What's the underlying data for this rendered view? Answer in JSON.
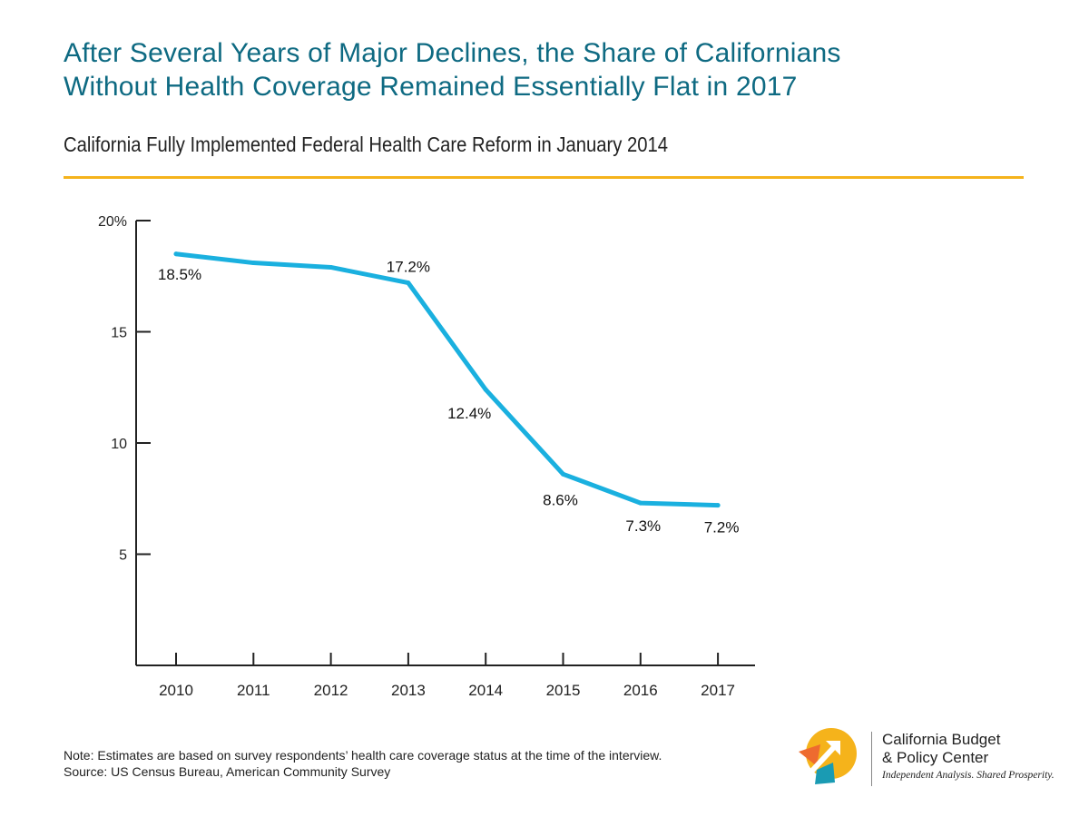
{
  "header": {
    "title_line1": "After Several Years of Major Declines, the Share of Californians",
    "title_line2": "Without Health Coverage Remained Essentially Flat in 2017",
    "subtitle": "California Fully Implemented Federal Health Care Reform in January 2014"
  },
  "colors": {
    "title": "#0e6a82",
    "accent_rule": "#f5b31b",
    "line": "#1ab0df",
    "axis": "#222222"
  },
  "chart_data": {
    "type": "line",
    "title": "",
    "xlabel": "",
    "ylabel": "",
    "x": [
      "2010",
      "2011",
      "2012",
      "2013",
      "2014",
      "2015",
      "2016",
      "2017"
    ],
    "series": [
      {
        "values": [
          18.5,
          18.1,
          17.9,
          17.2,
          12.4,
          8.6,
          7.3,
          7.2
        ]
      }
    ],
    "data_labels": [
      {
        "index": 0,
        "text": "18.5%"
      },
      {
        "index": 3,
        "text": "17.2%"
      },
      {
        "index": 4,
        "text": "12.4%"
      },
      {
        "index": 5,
        "text": "8.6%"
      },
      {
        "index": 6,
        "text": "7.3%"
      },
      {
        "index": 7,
        "text": "7.2%"
      }
    ],
    "y_ticks": [
      {
        "value": 20,
        "label": "20%"
      },
      {
        "value": 15,
        "label": "15"
      },
      {
        "value": 10,
        "label": "10"
      },
      {
        "value": 5,
        "label": "5"
      }
    ],
    "ylim": [
      0,
      20
    ],
    "grid": false,
    "legend": "none"
  },
  "footer": {
    "note": "Note: Estimates are based on survey respondents’ health care coverage status at the time of the interview.",
    "source": "Source: US Census Bureau, American Community Survey"
  },
  "logo": {
    "name_line1": "California Budget",
    "name_line2": "& Policy Center",
    "tagline": "Independent Analysis. Shared Prosperity."
  }
}
